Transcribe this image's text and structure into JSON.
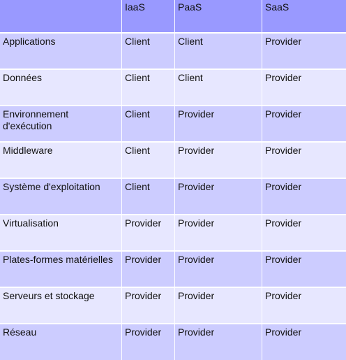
{
  "table": {
    "headers": [
      "",
      "IaaS",
      "PaaS",
      "SaaS"
    ],
    "rows": [
      [
        "Applications",
        "Client",
        "Client",
        "Provider"
      ],
      [
        "Données",
        "Client",
        "Client",
        "Provider"
      ],
      [
        "Environnement d'exécution",
        "Client",
        "Provider",
        "Provider"
      ],
      [
        "Middleware",
        "Client",
        "Provider",
        "Provider"
      ],
      [
        "Système d'exploitation",
        "Client",
        "Provider",
        "Provider"
      ],
      [
        "Virtualisation",
        "Provider",
        "Provider",
        "Provider"
      ],
      [
        "Plates-formes matérielles",
        "Provider",
        "Provider",
        "Provider"
      ],
      [
        "Serveurs et stockage",
        "Provider",
        "Provider",
        "Provider"
      ],
      [
        "Réseau",
        "Provider",
        "Provider",
        "Provider"
      ]
    ]
  },
  "colors": {
    "header": "#9999ff",
    "row_odd": "#ccccff",
    "row_even": "#e7e7ff"
  }
}
